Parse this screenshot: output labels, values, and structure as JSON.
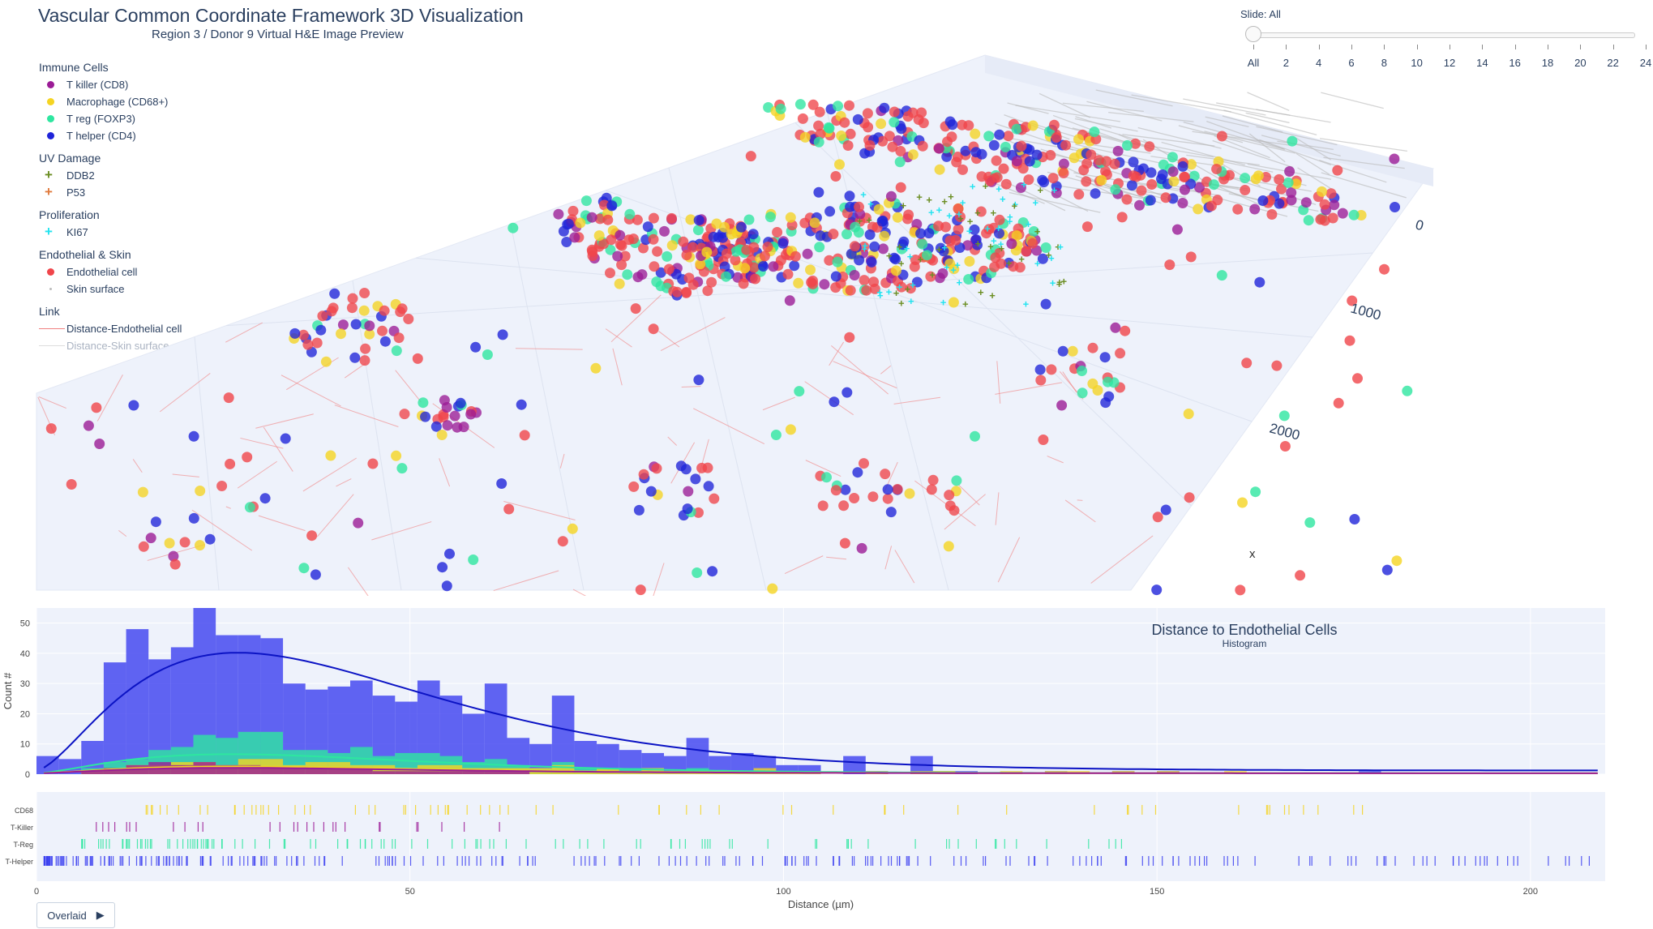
{
  "title": "Vascular Common Coordinate Framework 3D Visualization",
  "subtitle": "Region 3 / Donor 9  Virtual H&E Image Preview",
  "legend": {
    "groups": [
      {
        "title": "Immune Cells",
        "items": [
          {
            "label": "T killer (CD8)",
            "color": "#9b1c96",
            "symbol": "dot"
          },
          {
            "label": "Macrophage (CD68+)",
            "color": "#f5d422",
            "symbol": "dot"
          },
          {
            "label": "T reg (FOXP3)",
            "color": "#2ee6a0",
            "symbol": "dot"
          },
          {
            "label": "T helper (CD4)",
            "color": "#1f24d9",
            "symbol": "dot"
          }
        ]
      },
      {
        "title": "UV Damage",
        "items": [
          {
            "label": "DDB2",
            "color": "#6b8e23",
            "symbol": "plus"
          },
          {
            "label": "P53",
            "color": "#e07a3c",
            "symbol": "plus"
          }
        ]
      },
      {
        "title": "Proliferation",
        "items": [
          {
            "label": "KI67",
            "color": "#22e3ef",
            "symbol": "plus"
          }
        ]
      },
      {
        "title": "Endothelial & Skin",
        "items": [
          {
            "label": "Endothelial cell",
            "color": "#f0454a",
            "symbol": "dot"
          },
          {
            "label": "Skin surface",
            "color": "#bbbbbb",
            "symbol": "tiny"
          }
        ]
      },
      {
        "title": "Link",
        "items": [
          {
            "label": "Distance-Endothelial cell",
            "color": "#f08080",
            "symbol": "line"
          },
          {
            "label": "Distance-Skin surface",
            "color": "#dddddd",
            "symbol": "line",
            "faded": true
          }
        ]
      }
    ]
  },
  "slider": {
    "label": "Slide: All",
    "ticks": [
      "All",
      "2",
      "4",
      "6",
      "8",
      "10",
      "12",
      "14",
      "16",
      "18",
      "20",
      "22",
      "24"
    ],
    "selected": "All"
  },
  "scene": {
    "axis_x_label": "x",
    "y_ticks": [
      "0",
      "1000",
      "2000"
    ]
  },
  "chart_data": [
    {
      "type": "bar",
      "title": "Distance to Endothelial Cells",
      "subtitle": "Histogram",
      "xlabel": "Distance (µm)",
      "ylabel": "Count #",
      "xlim": [
        0,
        210
      ],
      "ylim": [
        0,
        55
      ],
      "xticks": [
        0,
        50,
        100,
        150,
        200
      ],
      "yticks": [
        0,
        10,
        20,
        30,
        40,
        50
      ],
      "bin_width": 3,
      "grid": true,
      "barmode": "overlay",
      "series": [
        {
          "name": "T-Helper",
          "color": "#3b3ff0",
          "values": [
            6,
            5,
            11,
            37,
            48,
            38,
            42,
            55,
            46,
            46,
            45,
            30,
            28,
            29,
            31,
            26,
            24,
            31,
            26,
            20,
            30,
            12,
            10,
            26,
            11,
            10,
            8,
            7,
            6,
            12,
            6,
            7,
            6,
            3,
            3,
            0,
            6,
            1,
            0,
            6,
            1,
            1,
            0,
            0,
            0,
            1,
            0,
            0,
            1,
            0,
            1,
            0,
            0,
            0,
            0,
            0,
            0,
            0,
            0,
            1,
            0,
            0,
            0,
            0,
            0,
            0,
            0,
            0,
            0,
            0
          ]
        },
        {
          "name": "T-Reg",
          "color": "#2ee6a0",
          "values": [
            0,
            0,
            2,
            4,
            5,
            8,
            9,
            13,
            12,
            14,
            14,
            8,
            8,
            7,
            9,
            6,
            7,
            7,
            6,
            4,
            5,
            3,
            2,
            4,
            2,
            2,
            2,
            2,
            1,
            2,
            1,
            1,
            1,
            0,
            0,
            0,
            0,
            0,
            0,
            0,
            1,
            0,
            0,
            0,
            0,
            0,
            0,
            0,
            0,
            0,
            0,
            0,
            0,
            0,
            0,
            0,
            0,
            0,
            0,
            0,
            0,
            0,
            0,
            0,
            0,
            0,
            0,
            0,
            0,
            0
          ]
        },
        {
          "name": "CD68",
          "color": "#f5d422",
          "values": [
            0,
            0,
            1,
            2,
            3,
            3,
            4,
            4,
            3,
            5,
            5,
            3,
            4,
            4,
            3,
            3,
            2,
            3,
            3,
            2,
            2,
            2,
            2,
            3,
            1,
            2,
            1,
            2,
            1,
            1,
            1,
            1,
            2,
            1,
            1,
            0,
            0,
            1,
            0,
            1,
            1,
            0,
            0,
            1,
            0,
            1,
            1,
            0,
            1,
            0,
            1,
            0,
            0,
            1,
            0,
            0,
            0,
            0,
            0,
            0,
            0,
            0,
            0,
            0,
            0,
            0,
            0,
            0,
            0,
            0
          ]
        },
        {
          "name": "T-Killer",
          "color": "#9b1c96",
          "values": [
            0,
            0,
            1,
            2,
            3,
            4,
            3,
            4,
            3,
            3,
            2,
            2,
            2,
            2,
            2,
            1,
            1,
            1,
            1,
            1,
            1,
            1,
            0,
            0,
            0,
            0,
            0,
            0,
            0,
            0,
            0,
            0,
            0,
            0,
            0,
            0,
            0,
            0,
            0,
            0,
            0,
            0,
            0,
            0,
            0,
            0,
            0,
            0,
            0,
            0,
            0,
            0,
            0,
            0,
            0,
            0,
            0,
            0,
            0,
            0,
            0,
            0,
            0,
            0,
            0,
            0,
            0,
            0,
            0,
            0
          ]
        }
      ],
      "kde_peak": {
        "T-Helper": 39
      }
    },
    {
      "type": "scatter",
      "name": "rug",
      "categories": [
        "CD68",
        "T-Killer",
        "T-Reg",
        "T-Helper"
      ],
      "colors": {
        "CD68": "#f5d422",
        "T-Killer": "#9b1c96",
        "T-Reg": "#2ee6a0",
        "T-Helper": "#3b3ff0"
      },
      "ranges": {
        "CD68": [
          13,
          183
        ],
        "T-Killer": [
          8,
          66
        ],
        "T-Reg": [
          6,
          146
        ],
        "T-Helper": [
          1,
          208
        ]
      }
    }
  ],
  "controls": {
    "overlaid_label": "Overlaid",
    "play_icon": "play-icon"
  }
}
